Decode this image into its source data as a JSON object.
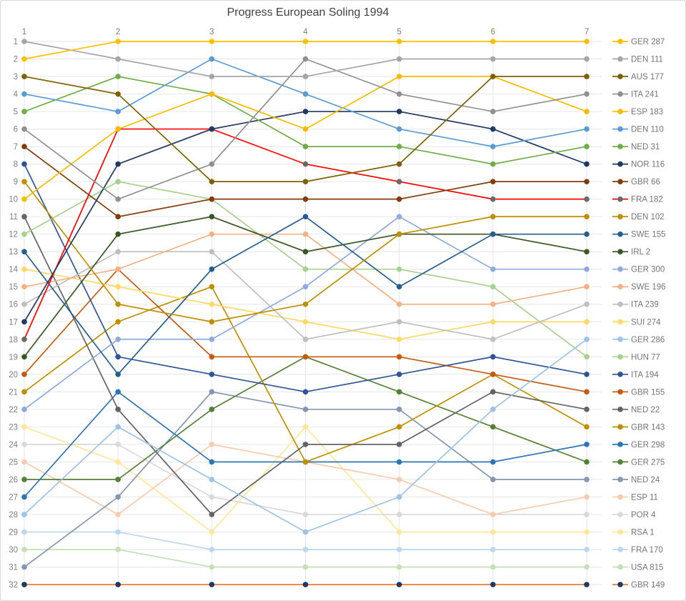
{
  "title": "Progress European Soling 1994",
  "chart_data": {
    "type": "line",
    "subtype": "bump-rank-progress",
    "x_categories": [
      "1",
      "2",
      "3",
      "4",
      "5",
      "6",
      "7"
    ],
    "xlabel": "",
    "ylabel": "",
    "y_axis": {
      "min": 1,
      "max": 32,
      "inverted": true,
      "tick_step": 1
    },
    "grid": true,
    "legend_position": "right",
    "colors": {
      "grid": "#e6e6e6",
      "axis_text": "#808080",
      "top_axis_text": "#8c7b5a",
      "legend_text": "#757575",
      "title_text": "#404040",
      "background": "#ffffff",
      "border": "#d9d9d9"
    },
    "series": [
      {
        "label": "GER 287",
        "color": "#FFC000",
        "marker": "#FFC000",
        "ranks": [
          2,
          1,
          1,
          1,
          1,
          1,
          1
        ]
      },
      {
        "label": "DEN 111",
        "color": "#A5A5A5",
        "marker": "#A5A5A5",
        "ranks": [
          1,
          2,
          3,
          3,
          2,
          2,
          2
        ]
      },
      {
        "label": "AUS 177",
        "color": "#7F6000",
        "marker": "#7F6000",
        "ranks": [
          3,
          4,
          9,
          9,
          8,
          3,
          3
        ]
      },
      {
        "label": "ITA 241",
        "color": "#919191",
        "marker": "#919191",
        "ranks": [
          6,
          10,
          8,
          2,
          4,
          5,
          4
        ]
      },
      {
        "label": "ESP 183",
        "color": "#F7BC00",
        "marker": "#F7BC00",
        "ranks": [
          10,
          6,
          4,
          6,
          3,
          3,
          5
        ]
      },
      {
        "label": "DEN 110",
        "color": "#5B9BD5",
        "marker": "#5B9BD5",
        "ranks": [
          4,
          5,
          2,
          4,
          6,
          7,
          6
        ]
      },
      {
        "label": "NED 31",
        "color": "#70AD47",
        "marker": "#70AD47",
        "ranks": [
          5,
          3,
          4,
          7,
          7,
          8,
          7
        ]
      },
      {
        "label": "NOR 116",
        "color": "#1F3864",
        "marker": "#1F3864",
        "ranks": [
          17,
          8,
          6,
          5,
          5,
          6,
          8
        ]
      },
      {
        "label": "GBR 66",
        "color": "#843C0C",
        "marker": "#843C0C",
        "ranks": [
          7,
          11,
          10,
          10,
          10,
          9,
          9
        ]
      },
      {
        "label": "FRA 182",
        "color": "#FF0000",
        "marker": "#696969",
        "ranks": [
          18,
          6,
          6,
          8,
          9,
          10,
          10
        ]
      },
      {
        "label": "DEN 102",
        "color": "#BF8F00",
        "marker": "#BF8F00",
        "ranks": [
          9,
          16,
          17,
          16,
          12,
          11,
          11
        ]
      },
      {
        "label": "SWE 155",
        "color": "#255E91",
        "marker": "#255E91",
        "ranks": [
          13,
          20,
          14,
          11,
          15,
          12,
          12
        ]
      },
      {
        "label": "IRL 2",
        "color": "#385723",
        "marker": "#385723",
        "ranks": [
          19,
          12,
          11,
          13,
          12,
          12,
          13
        ]
      },
      {
        "label": "GER 300",
        "color": "#8FAADC",
        "marker": "#8FAADC",
        "ranks": [
          22,
          18,
          18,
          15,
          11,
          14,
          14
        ]
      },
      {
        "label": "SWE 196",
        "color": "#F4B183",
        "marker": "#F4B183",
        "ranks": [
          15,
          14,
          12,
          12,
          16,
          16,
          15
        ]
      },
      {
        "label": "ITA 239",
        "color": "#BFBFBF",
        "marker": "#BFBFBF",
        "ranks": [
          16,
          13,
          13,
          18,
          17,
          18,
          16
        ]
      },
      {
        "label": "SUI 274",
        "color": "#FFD966",
        "marker": "#FFD966",
        "ranks": [
          14,
          15,
          16,
          17,
          18,
          17,
          17
        ]
      },
      {
        "label": "GER 286",
        "color": "#9DC3E6",
        "marker": "#9DC3E6",
        "ranks": [
          28,
          23,
          26,
          29,
          27,
          22,
          18
        ]
      },
      {
        "label": "HUN 77",
        "color": "#A9D18E",
        "marker": "#A9D18E",
        "ranks": [
          12,
          9,
          10,
          14,
          14,
          15,
          19
        ]
      },
      {
        "label": "ITA 194",
        "color": "#2F5597",
        "marker": "#2F5597",
        "ranks": [
          8,
          19,
          20,
          21,
          20,
          19,
          20
        ]
      },
      {
        "label": "GBR 155",
        "color": "#C55A11",
        "marker": "#C55A11",
        "ranks": [
          20,
          14,
          19,
          19,
          19,
          20,
          21
        ]
      },
      {
        "label": "NED 22",
        "color": "#636363",
        "marker": "#636363",
        "ranks": [
          11,
          22,
          28,
          24,
          24,
          21,
          22
        ]
      },
      {
        "label": "GBR 143",
        "color": "#BF9000",
        "marker": "#BF9000",
        "ranks": [
          21,
          17,
          15,
          25,
          23,
          20,
          23
        ]
      },
      {
        "label": "GER 298",
        "color": "#2E75B6",
        "marker": "#2E75B6",
        "ranks": [
          27,
          21,
          25,
          25,
          25,
          25,
          24
        ]
      },
      {
        "label": "GER 275",
        "color": "#538135",
        "marker": "#538135",
        "ranks": [
          26,
          26,
          22,
          19,
          21,
          23,
          25
        ]
      },
      {
        "label": "NED 24",
        "color": "#8496B0",
        "marker": "#8496B0",
        "ranks": [
          31,
          27,
          21,
          22,
          22,
          26,
          26
        ]
      },
      {
        "label": "ESP 11",
        "color": "#F8CBAD",
        "marker": "#F8CBAD",
        "ranks": [
          25,
          28,
          24,
          25,
          26,
          28,
          27
        ]
      },
      {
        "label": "POR 4",
        "color": "#D9D9D9",
        "marker": "#D9D9D9",
        "ranks": [
          24,
          24,
          27,
          28,
          28,
          28,
          28
        ]
      },
      {
        "label": "RSA 1",
        "color": "#FFE699",
        "marker": "#FFE699",
        "ranks": [
          23,
          25,
          29,
          23,
          29,
          29,
          29
        ]
      },
      {
        "label": "FRA 170",
        "color": "#BDD7EE",
        "marker": "#BDD7EE",
        "ranks": [
          29,
          29,
          30,
          30,
          30,
          30,
          30
        ]
      },
      {
        "label": "USA 815",
        "color": "#C5E0B4",
        "marker": "#C5E0B4",
        "ranks": [
          30,
          30,
          31,
          31,
          31,
          31,
          31
        ]
      },
      {
        "label": "GBR 149",
        "color": "#ED7D31",
        "marker": "#1F3864",
        "ranks": [
          32,
          32,
          32,
          32,
          32,
          32,
          32
        ]
      }
    ]
  },
  "axes": {
    "top_ticks": [
      "1",
      "2",
      "3",
      "4",
      "5",
      "6",
      "7"
    ],
    "left_ticks": [
      "1",
      "2",
      "3",
      "4",
      "5",
      "6",
      "7",
      "8",
      "9",
      "10",
      "11",
      "12",
      "13",
      "14",
      "15",
      "16",
      "17",
      "18",
      "19",
      "20",
      "21",
      "22",
      "23",
      "24",
      "25",
      "26",
      "27",
      "28",
      "29",
      "30",
      "31",
      "32"
    ]
  }
}
